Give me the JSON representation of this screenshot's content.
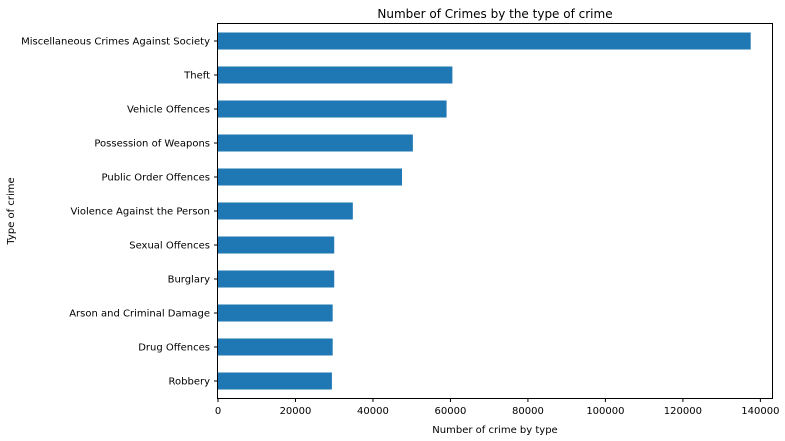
{
  "chart_data": {
    "type": "bar",
    "orientation": "horizontal",
    "title": "Number of Crimes by the type of crime",
    "xlabel": "Number of crime by type",
    "ylabel": "Type of crime",
    "categories": [
      "Miscellaneous Crimes Against Society",
      "Theft",
      "Vehicle Offences",
      "Possession of Weapons",
      "Public Order Offences",
      "Violence Against the Person",
      "Sexual Offences",
      "Burglary",
      "Arson and Criminal Damage",
      "Drug Offences",
      "Robbery"
    ],
    "values": [
      137500,
      60500,
      59000,
      50300,
      47500,
      34800,
      30000,
      30000,
      29600,
      29600,
      29400
    ],
    "xlim": [
      0,
      143000
    ],
    "xticks": [
      0,
      20000,
      40000,
      60000,
      80000,
      100000,
      120000,
      140000
    ],
    "xtick_labels": [
      "0",
      "20000",
      "40000",
      "60000",
      "80000",
      "100000",
      "120000",
      "140000"
    ],
    "grid": false,
    "bar_color": "#1f77b4"
  }
}
